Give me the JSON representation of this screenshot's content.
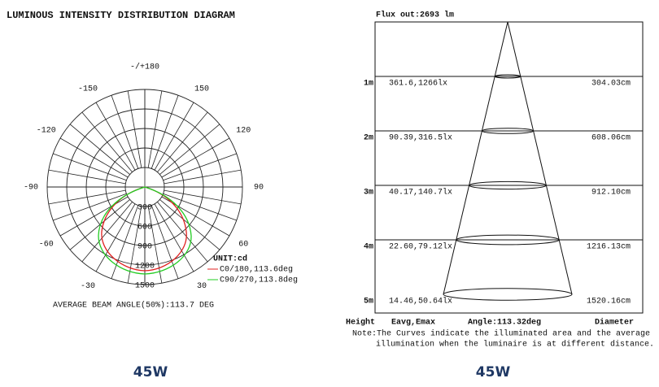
{
  "polar": {
    "title": "LUMINOUS INTENSITY DISTRIBUTION DIAGRAM",
    "right_angle_labels": [
      "-/+180",
      "150",
      "120",
      "90",
      "60",
      "30"
    ],
    "left_angle_labels": [
      "-30",
      "-60",
      "-90",
      "-120",
      "-150"
    ],
    "ring_labels": [
      "300",
      "600",
      "900",
      "1200",
      "1500"
    ],
    "unit": "UNIT:cd",
    "legend": [
      "C0/180,113.6deg",
      "C90/270,113.8deg"
    ],
    "beam_angle": "AVERAGE BEAM ANGLE(50%):113.7 DEG",
    "caption": "45W"
  },
  "cone": {
    "flux": "Flux out:2693 lm",
    "rows": [
      {
        "height": "1m",
        "eavg_emax": "361.6,1266lx",
        "diameter": "304.03cm"
      },
      {
        "height": "2m",
        "eavg_emax": "90.39,316.5lx",
        "diameter": "608.06cm"
      },
      {
        "height": "3m",
        "eavg_emax": "40.17,140.7lx",
        "diameter": "912.10cm"
      },
      {
        "height": "4m",
        "eavg_emax": "22.60,79.12lx",
        "diameter": "1216.13cm"
      },
      {
        "height": "5m",
        "eavg_emax": "14.46,50.64lx",
        "diameter": "1520.16cm"
      }
    ],
    "footer": {
      "height": "Height",
      "eavg": "Eavg,Emax",
      "angle": "Angle:113.32deg",
      "diameter": "Diameter"
    },
    "note": [
      "Note:The Curves indicate the illuminated area and the average",
      "illumination when the luminaire is at different distance."
    ],
    "caption": "45W"
  }
}
